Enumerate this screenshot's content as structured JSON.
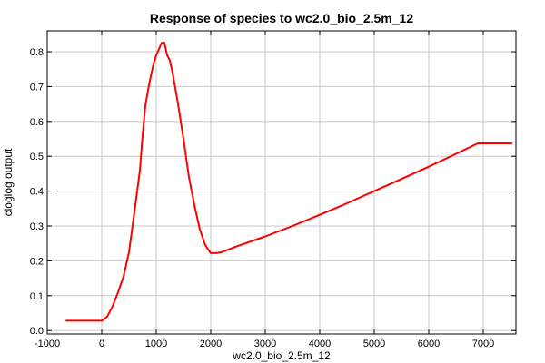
{
  "chart_data": {
    "type": "line",
    "title": "Response of species to wc2.0_bio_2.5m_12",
    "xlabel": "wc2.0_bio_2.5m_12",
    "ylabel": "cloglog output",
    "xlim": [
      -1000,
      7600
    ],
    "ylim": [
      -0.01,
      0.86
    ],
    "xticks": [
      -1000,
      0,
      1000,
      2000,
      3000,
      4000,
      5000,
      6000,
      7000
    ],
    "xtick_labels": [
      "-1000",
      "0",
      "1000",
      "2000",
      "3000",
      "4000",
      "5000",
      "6000",
      "7000"
    ],
    "yticks": [
      0.0,
      0.1,
      0.2,
      0.3,
      0.4,
      0.5,
      0.6,
      0.7,
      0.8
    ],
    "ytick_labels": [
      "0.0",
      "0.1",
      "0.2",
      "0.3",
      "0.4",
      "0.5",
      "0.6",
      "0.7",
      "0.8"
    ],
    "grid": true,
    "series": [
      {
        "color": "#ff0000",
        "x": [
          -650,
          -500,
          -300,
          -100,
          0,
          100,
          200,
          300,
          400,
          500,
          600,
          700,
          750,
          800,
          850,
          900,
          950,
          1000,
          1100,
          1150,
          1200,
          1250,
          1300,
          1400,
          1500,
          1600,
          1700,
          1800,
          1900,
          2000,
          2100,
          2200,
          2500,
          3000,
          3500,
          4000,
          4500,
          5000,
          5500,
          6000,
          6500,
          6900,
          7000,
          7200,
          7520
        ],
        "y": [
          0.028,
          0.028,
          0.028,
          0.028,
          0.028,
          0.04,
          0.07,
          0.11,
          0.155,
          0.225,
          0.34,
          0.46,
          0.56,
          0.645,
          0.69,
          0.73,
          0.765,
          0.79,
          0.826,
          0.826,
          0.79,
          0.775,
          0.74,
          0.65,
          0.55,
          0.44,
          0.36,
          0.29,
          0.245,
          0.222,
          0.222,
          0.225,
          0.243,
          0.27,
          0.3,
          0.332,
          0.365,
          0.4,
          0.435,
          0.47,
          0.507,
          0.537,
          0.537,
          0.537,
          0.537
        ]
      }
    ]
  }
}
